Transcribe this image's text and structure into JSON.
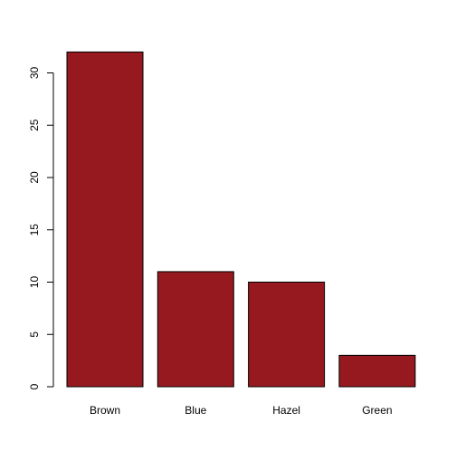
{
  "chart_data": {
    "type": "bar",
    "title": "",
    "xlabel": "",
    "ylabel": "",
    "categories": [
      "Brown",
      "Blue",
      "Hazel",
      "Green"
    ],
    "values": [
      32,
      11,
      10,
      3
    ],
    "ylim": [
      0,
      32
    ],
    "yticks": [
      0,
      5,
      10,
      15,
      20,
      25,
      30
    ],
    "bar_color": "#96191f",
    "bar_border_color": "#000000",
    "grid": false,
    "legend": "none"
  }
}
